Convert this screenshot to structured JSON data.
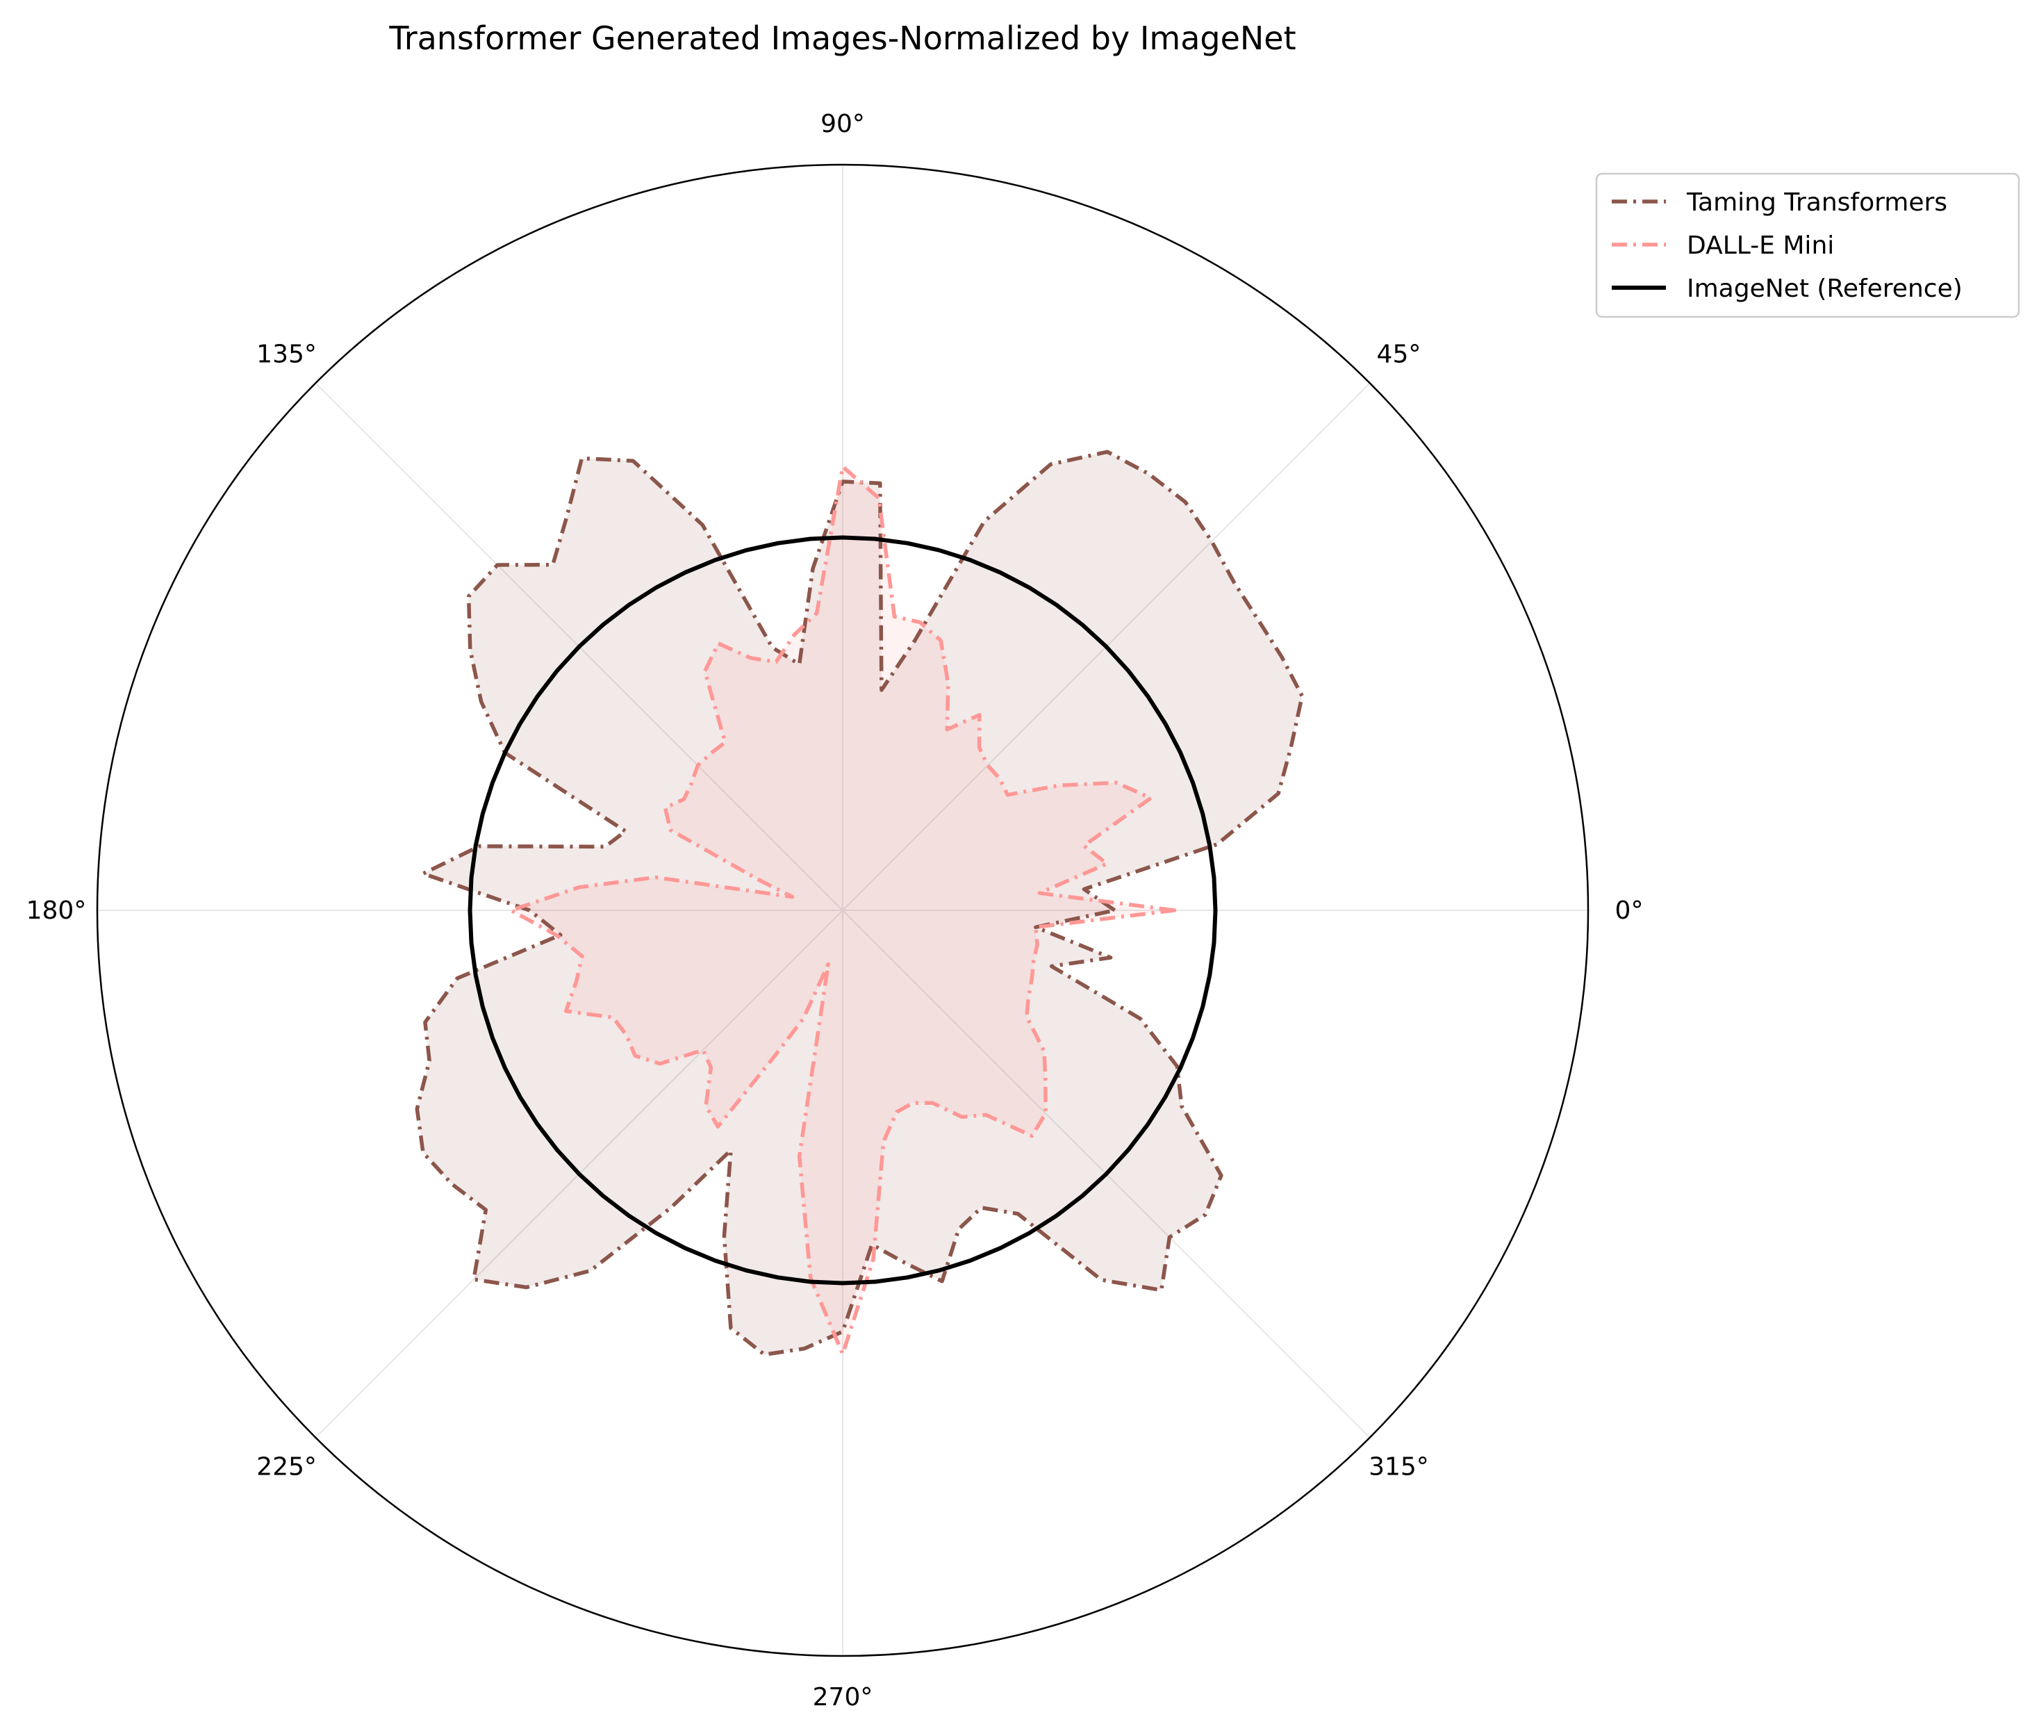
{
  "chart_data": {
    "type": "polar-line",
    "title": "Transformer Generated Images-Normalized by ImageNet",
    "angle_ticks": [
      "0°",
      "45°",
      "90°",
      "135°",
      "180°",
      "225°",
      "270°",
      "315°"
    ],
    "angle_tick_degrees": [
      0,
      45,
      90,
      135,
      180,
      225,
      270,
      315
    ],
    "rlim": [
      0,
      2.0
    ],
    "grid": true,
    "legend_position": "upper-right outside",
    "series": [
      {
        "name": "Taming Transformers",
        "color": "#8c564b",
        "style": "dashdot",
        "angles_deg": [
          0,
          5,
          10,
          15,
          20,
          25,
          30,
          35,
          40,
          45,
          50,
          55,
          60,
          65,
          70,
          75,
          80,
          85,
          90,
          95,
          100,
          105,
          110,
          115,
          120,
          125,
          130,
          135,
          140,
          145,
          150,
          155,
          160,
          165,
          170,
          175,
          180,
          185,
          190,
          195,
          200,
          205,
          210,
          215,
          220,
          225,
          230,
          235,
          240,
          245,
          250,
          255,
          260,
          265,
          270,
          275,
          280,
          285,
          290,
          295,
          300,
          305,
          310,
          315,
          320,
          325,
          330,
          335,
          340,
          345,
          350,
          355
        ],
        "values": [
          0.73,
          0.65,
          1.02,
          1.21,
          1.28,
          1.36,
          1.36,
          1.36,
          1.37,
          1.4,
          1.43,
          1.43,
          1.42,
          1.32,
          1.11,
          0.75,
          0.6,
          1.15,
          1.15,
          0.92,
          0.67,
          0.73,
          1.1,
          1.33,
          1.4,
          1.29,
          1.21,
          1.31,
          1.31,
          1.22,
          1.12,
          1.0,
          0.62,
          0.66,
          0.99,
          1.13,
          0.84,
          0.76,
          1.05,
          1.16,
          1.18,
          1.26,
          1.3,
          1.28,
          1.25,
          1.4,
          1.32,
          1.18,
          0.92,
          0.71,
          0.93,
          1.16,
          1.21,
          1.18,
          1.13,
          0.9,
          0.96,
          1.03,
          0.91,
          0.88,
          0.94,
          1.21,
          1.33,
          1.24,
          1.27,
          1.24,
          1.05,
          0.99,
          0.85,
          0.58,
          0.73,
          0.52
        ],
        "fill_color": "#8c564b",
        "fill_alpha": 0.12
      },
      {
        "name": "DALL-E Mini",
        "color": "#ff9896",
        "style": "dashdot",
        "angles_deg": [
          0,
          5,
          10,
          15,
          20,
          25,
          30,
          35,
          40,
          45,
          50,
          55,
          60,
          65,
          70,
          75,
          80,
          85,
          90,
          95,
          100,
          105,
          110,
          115,
          120,
          125,
          130,
          135,
          140,
          145,
          150,
          155,
          160,
          165,
          170,
          175,
          180,
          185,
          190,
          195,
          200,
          205,
          210,
          215,
          220,
          225,
          230,
          235,
          240,
          245,
          250,
          255,
          260,
          265,
          270,
          275,
          280,
          285,
          290,
          295,
          300,
          305,
          310,
          315,
          320,
          325,
          330,
          335,
          340,
          345,
          350,
          355
        ],
        "values": [
          0.89,
          0.53,
          0.72,
          0.67,
          0.88,
          0.81,
          0.67,
          0.54,
          0.55,
          0.55,
          0.57,
          0.64,
          0.56,
          0.67,
          0.77,
          0.8,
          0.8,
          1.11,
          1.19,
          0.8,
          0.75,
          0.69,
          0.72,
          0.79,
          0.74,
          0.55,
          0.55,
          0.55,
          0.53,
          0.52,
          0.55,
          0.51,
          0.24,
          0.14,
          0.51,
          0.71,
          0.89,
          0.77,
          0.71,
          0.74,
          0.79,
          0.68,
          0.67,
          0.68,
          0.64,
          0.53,
          0.55,
          0.64,
          0.67,
          0.43,
          0.31,
          0.15,
          0.67,
          0.99,
          1.19,
          0.94,
          0.63,
          0.56,
          0.55,
          0.57,
          0.64,
          0.67,
          0.79,
          0.77,
          0.71,
          0.66,
          0.57,
          0.55,
          0.54,
          0.53,
          0.53,
          0.52
        ],
        "fill_color": "#ff9896",
        "fill_alpha": 0.12
      },
      {
        "name": "ImageNet (Reference)",
        "color": "#000000",
        "style": "solid",
        "constant_value": 1.0
      }
    ]
  }
}
